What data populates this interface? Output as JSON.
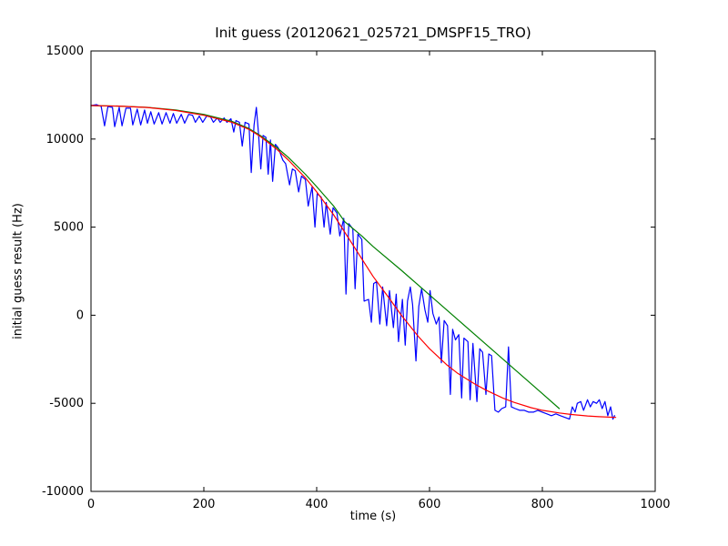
{
  "figure": {
    "title": "Init guess (20120621_025721_DMSPF15_TRO)",
    "xlabel": "time (s)",
    "ylabel": "initial guess result (Hz)"
  },
  "chart_data": {
    "type": "line",
    "title": "Init guess (20120621_025721_DMSPF15_TRO)",
    "xlabel": "time (s)",
    "ylabel": "initial guess result (Hz)",
    "xlim": [
      0,
      1000
    ],
    "ylim": [
      -10000,
      15000
    ],
    "x_ticks": [
      0,
      200,
      400,
      600,
      800,
      1000
    ],
    "y_ticks": [
      -10000,
      -5000,
      0,
      5000,
      10000,
      15000
    ],
    "grid": false,
    "legend_position": "none",
    "background": "#ffffff",
    "axes_color": "#000000",
    "series": [
      {
        "name": "blue-noisy-data",
        "color": "#0000ff",
        "points": [
          [
            0,
            11900
          ],
          [
            10,
            11950
          ],
          [
            18,
            11850
          ],
          [
            24,
            10750
          ],
          [
            30,
            11850
          ],
          [
            38,
            11800
          ],
          [
            42,
            10700
          ],
          [
            50,
            11800
          ],
          [
            55,
            10750
          ],
          [
            62,
            11750
          ],
          [
            70,
            11750
          ],
          [
            74,
            10800
          ],
          [
            82,
            11700
          ],
          [
            88,
            10800
          ],
          [
            95,
            11650
          ],
          [
            100,
            10900
          ],
          [
            106,
            11550
          ],
          [
            112,
            10850
          ],
          [
            120,
            11500
          ],
          [
            126,
            10850
          ],
          [
            133,
            11500
          ],
          [
            140,
            10900
          ],
          [
            146,
            11450
          ],
          [
            152,
            10900
          ],
          [
            160,
            11400
          ],
          [
            166,
            10900
          ],
          [
            173,
            11400
          ],
          [
            180,
            11350
          ],
          [
            185,
            10950
          ],
          [
            192,
            11300
          ],
          [
            198,
            10950
          ],
          [
            205,
            11300
          ],
          [
            212,
            11250
          ],
          [
            217,
            10950
          ],
          [
            224,
            11200
          ],
          [
            229,
            10950
          ],
          [
            236,
            11200
          ],
          [
            241,
            10950
          ],
          [
            248,
            11150
          ],
          [
            253,
            10400
          ],
          [
            257,
            11050
          ],
          [
            263,
            10950
          ],
          [
            268,
            9600
          ],
          [
            273,
            10950
          ],
          [
            280,
            10850
          ],
          [
            284,
            8100
          ],
          [
            289,
            10800
          ],
          [
            293,
            11800
          ],
          [
            297,
            10300
          ],
          [
            301,
            8300
          ],
          [
            305,
            10200
          ],
          [
            310,
            10100
          ],
          [
            314,
            8000
          ],
          [
            318,
            9950
          ],
          [
            322,
            7600
          ],
          [
            327,
            9700
          ],
          [
            332,
            9500
          ],
          [
            340,
            8800
          ],
          [
            345,
            8600
          ],
          [
            352,
            7400
          ],
          [
            357,
            8300
          ],
          [
            362,
            8200
          ],
          [
            368,
            7000
          ],
          [
            373,
            7900
          ],
          [
            380,
            7700
          ],
          [
            385,
            6200
          ],
          [
            392,
            7300
          ],
          [
            397,
            5000
          ],
          [
            401,
            6900
          ],
          [
            408,
            6700
          ],
          [
            413,
            5000
          ],
          [
            417,
            6400
          ],
          [
            424,
            4600
          ],
          [
            429,
            6100
          ],
          [
            436,
            5800
          ],
          [
            441,
            4500
          ],
          [
            448,
            5500
          ],
          [
            452,
            1200
          ],
          [
            457,
            5200
          ],
          [
            464,
            4900
          ],
          [
            468,
            1500
          ],
          [
            473,
            4600
          ],
          [
            480,
            4300
          ],
          [
            484,
            800
          ],
          [
            492,
            900
          ],
          [
            497,
            -400
          ],
          [
            501,
            1800
          ],
          [
            506,
            1900
          ],
          [
            512,
            -500
          ],
          [
            517,
            1600
          ],
          [
            524,
            -600
          ],
          [
            529,
            1400
          ],
          [
            536,
            -700
          ],
          [
            541,
            1200
          ],
          [
            545,
            -1500
          ],
          [
            552,
            900
          ],
          [
            557,
            -1700
          ],
          [
            561,
            800
          ],
          [
            566,
            1600
          ],
          [
            570,
            600
          ],
          [
            576,
            -2600
          ],
          [
            581,
            500
          ],
          [
            586,
            1500
          ],
          [
            592,
            300
          ],
          [
            597,
            -400
          ],
          [
            601,
            1400
          ],
          [
            606,
            100
          ],
          [
            612,
            -500
          ],
          [
            617,
            -100
          ],
          [
            621,
            -2700
          ],
          [
            626,
            -300
          ],
          [
            632,
            -600
          ],
          [
            637,
            -4500
          ],
          [
            641,
            -800
          ],
          [
            646,
            -1400
          ],
          [
            652,
            -1100
          ],
          [
            657,
            -4700
          ],
          [
            661,
            -1300
          ],
          [
            668,
            -1500
          ],
          [
            672,
            -4800
          ],
          [
            677,
            -1600
          ],
          [
            684,
            -4900
          ],
          [
            689,
            -1900
          ],
          [
            694,
            -2100
          ],
          [
            700,
            -4500
          ],
          [
            705,
            -2200
          ],
          [
            710,
            -2300
          ],
          [
            716,
            -5400
          ],
          [
            722,
            -5500
          ],
          [
            728,
            -5300
          ],
          [
            735,
            -5200
          ],
          [
            740,
            -1800
          ],
          [
            745,
            -5200
          ],
          [
            752,
            -5300
          ],
          [
            760,
            -5400
          ],
          [
            768,
            -5400
          ],
          [
            776,
            -5500
          ],
          [
            784,
            -5500
          ],
          [
            792,
            -5400
          ],
          [
            800,
            -5500
          ],
          [
            808,
            -5600
          ],
          [
            816,
            -5700
          ],
          [
            824,
            -5600
          ],
          [
            832,
            -5700
          ],
          [
            840,
            -5800
          ],
          [
            848,
            -5900
          ],
          [
            853,
            -5200
          ],
          [
            858,
            -5500
          ],
          [
            862,
            -5000
          ],
          [
            868,
            -4900
          ],
          [
            873,
            -5400
          ],
          [
            880,
            -4800
          ],
          [
            885,
            -5200
          ],
          [
            890,
            -4900
          ],
          [
            896,
            -5000
          ],
          [
            901,
            -4800
          ],
          [
            906,
            -5300
          ],
          [
            911,
            -4900
          ],
          [
            916,
            -5700
          ],
          [
            921,
            -5200
          ],
          [
            925,
            -5900
          ],
          [
            928,
            -5700
          ]
        ]
      },
      {
        "name": "green-smooth-fit",
        "color": "#008000",
        "points": [
          [
            0,
            11900
          ],
          [
            50,
            11870
          ],
          [
            100,
            11800
          ],
          [
            150,
            11650
          ],
          [
            200,
            11400
          ],
          [
            250,
            11000
          ],
          [
            280,
            10600
          ],
          [
            300,
            10200
          ],
          [
            330,
            9500
          ],
          [
            350,
            8950
          ],
          [
            380,
            8000
          ],
          [
            400,
            7300
          ],
          [
            430,
            6200
          ],
          [
            450,
            5300
          ],
          [
            480,
            4500
          ],
          [
            500,
            3900
          ],
          [
            550,
            2550
          ],
          [
            600,
            1150
          ],
          [
            650,
            -250
          ],
          [
            700,
            -1650
          ],
          [
            750,
            -3050
          ],
          [
            800,
            -4450
          ],
          [
            830,
            -5300
          ]
        ]
      },
      {
        "name": "red-smooth-fit",
        "color": "#ff0000",
        "points": [
          [
            0,
            11900
          ],
          [
            50,
            11870
          ],
          [
            100,
            11790
          ],
          [
            150,
            11620
          ],
          [
            200,
            11350
          ],
          [
            250,
            10950
          ],
          [
            280,
            10550
          ],
          [
            300,
            10150
          ],
          [
            330,
            9400
          ],
          [
            350,
            8800
          ],
          [
            380,
            7800
          ],
          [
            400,
            7000
          ],
          [
            430,
            5700
          ],
          [
            450,
            4700
          ],
          [
            480,
            3200
          ],
          [
            500,
            2200
          ],
          [
            530,
            900
          ],
          [
            550,
            0
          ],
          [
            580,
            -1200
          ],
          [
            600,
            -1900
          ],
          [
            630,
            -2800
          ],
          [
            650,
            -3300
          ],
          [
            680,
            -3900
          ],
          [
            700,
            -4250
          ],
          [
            730,
            -4700
          ],
          [
            750,
            -4950
          ],
          [
            780,
            -5250
          ],
          [
            800,
            -5400
          ],
          [
            830,
            -5550
          ],
          [
            850,
            -5630
          ],
          [
            880,
            -5720
          ],
          [
            900,
            -5760
          ],
          [
            930,
            -5800
          ]
        ]
      }
    ]
  }
}
